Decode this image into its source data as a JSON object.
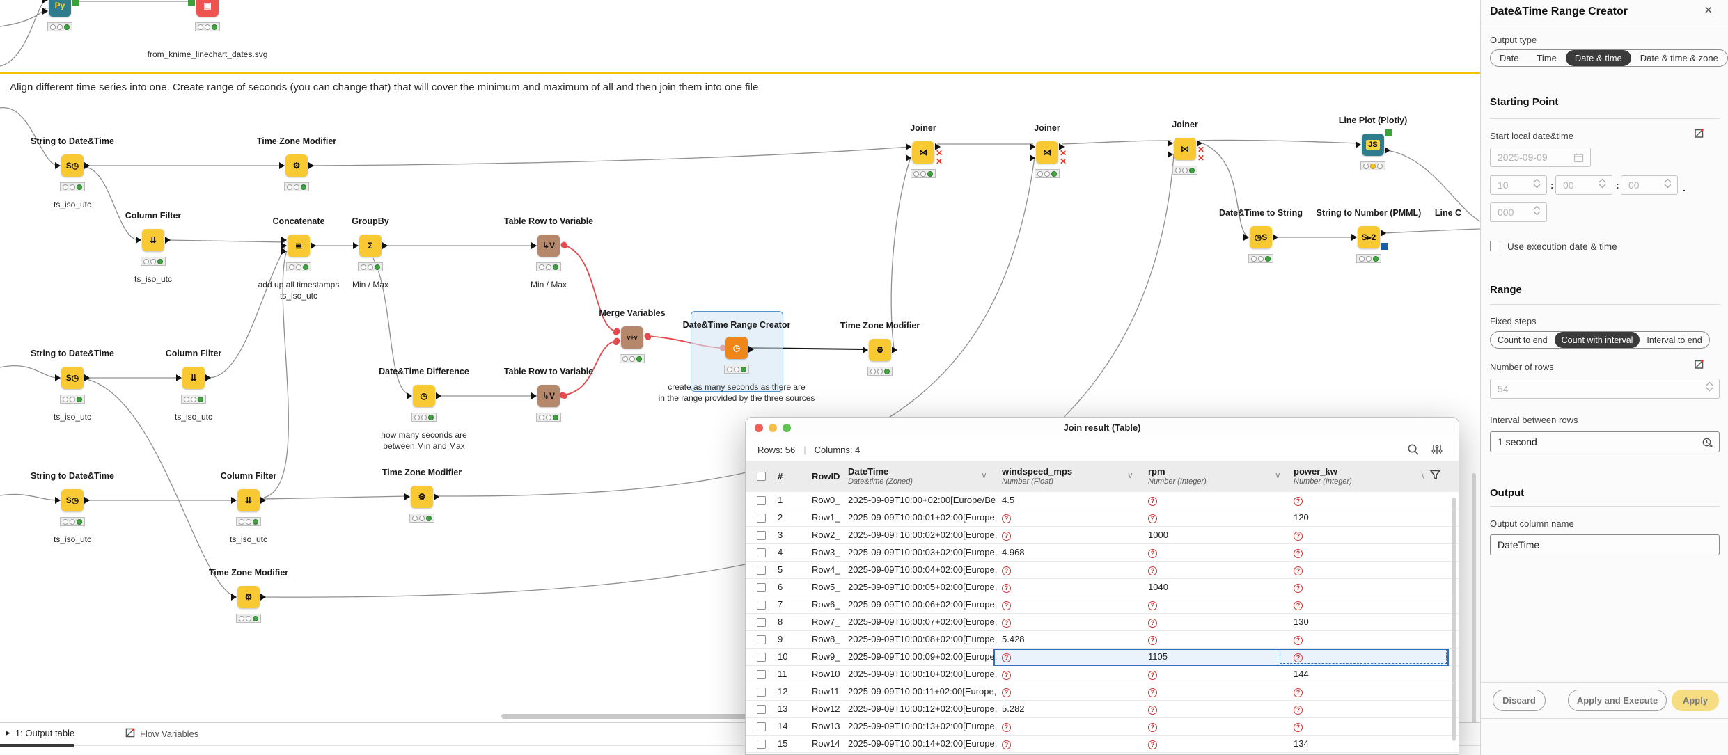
{
  "canvas": {
    "annotation": "Align different time series into one. Create range of seconds (you can change that) that will cover the minimum and maximum of all and then join them into one file",
    "nodes": [
      {
        "id": "py",
        "label": "",
        "captions": [],
        "icon": "Py",
        "color": "#2F7D8C",
        "iconColor": "#F6D33C",
        "lights": "g",
        "ports": "img-src"
      },
      {
        "id": "writer",
        "label": "",
        "captions": [
          "from_knime_linechart_dates.svg"
        ],
        "icon": "▣",
        "color": "#EF5350",
        "iconColor": "#ffffff",
        "lights": "g",
        "ports": "img-dst"
      },
      {
        "id": "s2dt1",
        "label": "String to Date&Time",
        "captions": [
          "ts_iso_utc"
        ],
        "icon": "S◷",
        "color": "#F8C932",
        "lights": "g",
        "ports": "tri"
      },
      {
        "id": "tzm1",
        "label": "Time Zone Modifier",
        "captions": [],
        "icon": "⚙",
        "color": "#F8C932",
        "lights": "g",
        "ports": "tri"
      },
      {
        "id": "cf1",
        "label": "Column Filter",
        "captions": [
          "ts_iso_utc"
        ],
        "icon": "⇊",
        "color": "#F8C932",
        "lights": "g",
        "ports": "tri"
      },
      {
        "id": "concat",
        "label": "Concatenate",
        "captions": [
          "add up all timestamps",
          "ts_iso_utc"
        ],
        "icon": "≣",
        "color": "#F8C932",
        "lights": "g",
        "ports": "tri3"
      },
      {
        "id": "groupby",
        "label": "GroupBy",
        "captions": [
          "Min / Max"
        ],
        "icon": "Σ",
        "color": "#F8C932",
        "lights": "g",
        "ports": "tri"
      },
      {
        "id": "trtv1",
        "label": "Table Row to Variable",
        "captions": [
          "Min / Max"
        ],
        "icon": "↳V",
        "color": "#B5886B",
        "lights": "g",
        "ports": "tvar"
      },
      {
        "id": "merge",
        "label": "Merge Variables",
        "captions": [],
        "icon": "v+v",
        "color": "#B5886B",
        "lights": "g",
        "ports": "var2"
      },
      {
        "id": "dtrc",
        "label": "Date&Time Range Creator",
        "captions": [
          "create as many seconds as there are",
          "in the range provided by the three sources"
        ],
        "icon": "◷",
        "color": "#EE8619",
        "iconColor": "#ffffff",
        "lights": "g",
        "ports": "vin-tri"
      },
      {
        "id": "tzm2",
        "label": "Time Zone Modifier",
        "captions": [],
        "icon": "⚙",
        "color": "#F8C932",
        "lights": "g",
        "ports": "tri"
      },
      {
        "id": "s2dt2",
        "label": "String to Date&Time",
        "captions": [
          "ts_iso_utc"
        ],
        "icon": "S◷",
        "color": "#F8C932",
        "lights": "g",
        "ports": "tri"
      },
      {
        "id": "cf2",
        "label": "Column Filter",
        "captions": [
          "ts_iso_utc"
        ],
        "icon": "⇊",
        "color": "#F8C932",
        "lights": "g",
        "ports": "tri"
      },
      {
        "id": "dtdiff",
        "label": "Date&Time Difference",
        "captions": [
          "how many seconds are",
          "between Min and Max"
        ],
        "icon": "◷",
        "color": "#F8C932",
        "lights": "g",
        "ports": "tri"
      },
      {
        "id": "trtv2",
        "label": "Table Row to Variable",
        "captions": [],
        "icon": "↳V",
        "color": "#B5886B",
        "lights": "g",
        "ports": "tvar"
      },
      {
        "id": "s2dt3",
        "label": "String to Date&Time",
        "captions": [
          "ts_iso_utc"
        ],
        "icon": "S◷",
        "color": "#F8C932",
        "lights": "g",
        "ports": "tri"
      },
      {
        "id": "cf3",
        "label": "Column Filter",
        "captions": [
          "ts_iso_utc"
        ],
        "icon": "⇊",
        "color": "#F8C932",
        "lights": "g",
        "ports": "tri"
      },
      {
        "id": "tzm3",
        "label": "Time Zone Modifier",
        "captions": [],
        "icon": "⚙",
        "color": "#F8C932",
        "lights": "g",
        "ports": "tri"
      },
      {
        "id": "tzm4",
        "label": "Time Zone Modifier",
        "captions": [],
        "icon": "⚙",
        "color": "#F8C932",
        "lights": "g",
        "ports": "tri"
      },
      {
        "id": "j1",
        "label": "Joiner",
        "captions": [],
        "icon": "⋈",
        "color": "#F8C932",
        "lights": "g",
        "ports": "join"
      },
      {
        "id": "j2",
        "label": "Joiner",
        "captions": [],
        "icon": "⋈",
        "color": "#F8C932",
        "lights": "g",
        "ports": "join"
      },
      {
        "id": "j3",
        "label": "Joiner",
        "captions": [],
        "icon": "⋈",
        "color": "#F8C932",
        "lights": "g",
        "ports": "join"
      },
      {
        "id": "plotly",
        "label": "Line Plot (Plotly)",
        "captions": [],
        "icon": "JS",
        "color": "#2F7D8C",
        "iconColor": "#111",
        "iconChip": "#F6D33C",
        "lights": "y",
        "ports": "view"
      },
      {
        "id": "dt2s",
        "label": "Date&Time to String",
        "captions": [],
        "icon": "◷S",
        "color": "#F8C932",
        "lights": "g",
        "ports": "tri"
      },
      {
        "id": "s2n",
        "label": "String to Number (PMML)",
        "captions": [],
        "icon": "S▸2",
        "color": "#F8C932",
        "lights": "g",
        "ports": "pmml"
      },
      {
        "id": "linec",
        "label": "Line C",
        "captions": [],
        "labelOnly": true
      }
    ]
  },
  "table_window": {
    "title": "Join result (Table)",
    "rows_label": "Rows: 56",
    "separator": "|",
    "columns_label": "Columns: 4",
    "header": {
      "hash": "#",
      "rowid": "RowID",
      "cols": [
        {
          "name": "DateTime",
          "type": "Date&time (Zoned)"
        },
        {
          "name": "windspeed_mps",
          "type": "Number (Float)"
        },
        {
          "name": "rpm",
          "type": "Number (Integer)"
        },
        {
          "name": "power_kw",
          "type": "Number (Integer)"
        }
      ]
    },
    "rows": [
      {
        "n": "1",
        "id": "Row0_",
        "dt": "2025-09-09T10:00+02:00[Europe/Be",
        "ws": "4.5",
        "rpm": null,
        "pw": null,
        "selected": false
      },
      {
        "n": "2",
        "id": "Row1_",
        "dt": "2025-09-09T10:00:01+02:00[Europe,",
        "ws": null,
        "rpm": null,
        "pw": "120",
        "selected": false
      },
      {
        "n": "3",
        "id": "Row2_",
        "dt": "2025-09-09T10:00:02+02:00[Europe,",
        "ws": null,
        "rpm": "1000",
        "pw": null,
        "selected": false
      },
      {
        "n": "4",
        "id": "Row3_",
        "dt": "2025-09-09T10:00:03+02:00[Europe,",
        "ws": "4.968",
        "rpm": null,
        "pw": null,
        "selected": false
      },
      {
        "n": "5",
        "id": "Row4_",
        "dt": "2025-09-09T10:00:04+02:00[Europe,",
        "ws": null,
        "rpm": null,
        "pw": null,
        "selected": false
      },
      {
        "n": "6",
        "id": "Row5_",
        "dt": "2025-09-09T10:00:05+02:00[Europe,",
        "ws": null,
        "rpm": "1040",
        "pw": null,
        "selected": false
      },
      {
        "n": "7",
        "id": "Row6_",
        "dt": "2025-09-09T10:00:06+02:00[Europe,",
        "ws": null,
        "rpm": null,
        "pw": null,
        "selected": false
      },
      {
        "n": "8",
        "id": "Row7_",
        "dt": "2025-09-09T10:00:07+02:00[Europe,",
        "ws": null,
        "rpm": null,
        "pw": "130",
        "selected": false
      },
      {
        "n": "9",
        "id": "Row8_",
        "dt": "2025-09-09T10:00:08+02:00[Europe,",
        "ws": "5.428",
        "rpm": null,
        "pw": null,
        "selected": false
      },
      {
        "n": "10",
        "id": "Row9_",
        "dt": "2025-09-09T10:00:09+02:00[Europe,",
        "ws": null,
        "rpm": "1105",
        "pw": null,
        "selected": true
      },
      {
        "n": "11",
        "id": "Row10",
        "dt": "2025-09-09T10:00:10+02:00[Europe,",
        "ws": null,
        "rpm": null,
        "pw": "144",
        "selected": false
      },
      {
        "n": "12",
        "id": "Row11",
        "dt": "2025-09-09T10:00:11+02:00[Europe,",
        "ws": null,
        "rpm": null,
        "pw": null,
        "selected": false
      },
      {
        "n": "13",
        "id": "Row12",
        "dt": "2025-09-09T10:00:12+02:00[Europe,",
        "ws": "5.282",
        "rpm": null,
        "pw": null,
        "selected": false
      },
      {
        "n": "14",
        "id": "Row13",
        "dt": "2025-09-09T10:00:13+02:00[Europe,",
        "ws": null,
        "rpm": null,
        "pw": null,
        "selected": false
      },
      {
        "n": "15",
        "id": "Row14",
        "dt": "2025-09-09T10:00:14+02:00[Europe,",
        "ws": null,
        "rpm": null,
        "pw": "134",
        "selected": false
      }
    ]
  },
  "panel": {
    "title": "Date&Time Range Creator",
    "close_glyph": "×",
    "output_type_label": "Output type",
    "output_type_options": [
      "Date",
      "Time",
      "Date & time",
      "Date & time & zone"
    ],
    "output_type_selected": "Date & time",
    "starting_point_heading": "Starting Point",
    "start_label": "Start local date&time",
    "start_date_value": "2025-09-09",
    "time_hours": "10",
    "time_minutes": "00",
    "time_seconds": "00",
    "time_millis": "000",
    "use_execution_label": "Use execution date & time",
    "range_heading": "Range",
    "fixed_steps_label": "Fixed steps",
    "fixed_steps_options": [
      "Count to end",
      "Count with interval",
      "Interval to end"
    ],
    "fixed_steps_selected": "Count with interval",
    "number_of_rows_label": "Number of rows",
    "number_of_rows_value": "54",
    "interval_label": "Interval between rows",
    "interval_value": "1 second",
    "output_heading": "Output",
    "output_column_label": "Output column name",
    "output_column_value": "DateTime",
    "discard_label": "Discard",
    "apply_execute_label": "Apply and Execute",
    "apply_label": "Apply"
  },
  "bottom_bar": {
    "tab_output": "1: Output table",
    "tab_flow_vars": "Flow Variables"
  },
  "colors": {
    "accent_yellow": "#F2C200",
    "node_yellow": "#F8C932",
    "node_brown": "#B5886B",
    "node_orange": "#EE8619",
    "node_teal": "#2F7D8C",
    "node_red": "#EF5350",
    "connection_red": "#E5484D",
    "selection_blue": "#2F6FBE"
  }
}
